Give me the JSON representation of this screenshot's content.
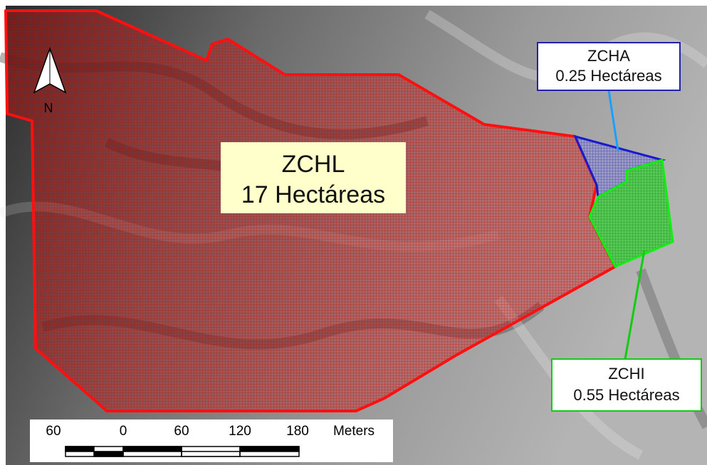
{
  "north_arrow": {
    "label": "N"
  },
  "zones": [
    {
      "name": "ZCHL",
      "area": "17 Hectáreas"
    },
    {
      "name": "ZCHA",
      "area": "0.25 Hectáreas"
    },
    {
      "name": "ZCHI",
      "area": "0.55 Hectáreas"
    }
  ],
  "scale_bar": {
    "labels": [
      "60",
      "0",
      "60",
      "120",
      "180"
    ],
    "unit": "Meters"
  }
}
